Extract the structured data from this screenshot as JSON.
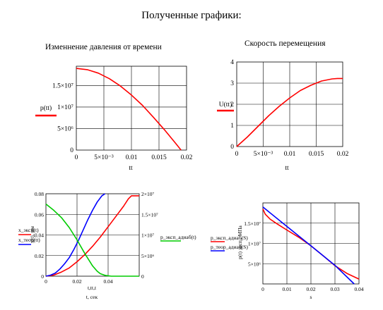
{
  "page_title": "Полученные графики:",
  "chart_data": [
    {
      "id": "pressure",
      "type": "line",
      "title": "Изменнение давления от времени",
      "xlabel": "tt",
      "ylabel": "p(tt)",
      "xlim": [
        0,
        0.02
      ],
      "ylim": [
        0,
        19500000.0
      ],
      "x_ticks": [
        "0",
        "5×10⁻³",
        "0.01",
        "0.015",
        "0.02"
      ],
      "x_tick_values": [
        0,
        0.005,
        0.01,
        0.015,
        0.02
      ],
      "y_ticks": [
        "0",
        "5×10⁶",
        "1×10⁷",
        "1.5×10⁷"
      ],
      "y_tick_values": [
        0,
        5000000.0,
        10000000.0,
        15000000.0
      ],
      "grid": true,
      "legend": "left",
      "series": [
        {
          "name": "p(tt)",
          "color": "#ff0000",
          "x": [
            0,
            0.002,
            0.004,
            0.006,
            0.008,
            0.01,
            0.012,
            0.014,
            0.016,
            0.018,
            0.019
          ],
          "y": [
            19000000.0,
            18700000.0,
            17900000.0,
            16600000.0,
            14900000.0,
            12800000.0,
            10400000.0,
            7600000.0,
            4700000.0,
            1600000.0,
            0
          ]
        }
      ]
    },
    {
      "id": "velocity",
      "type": "line",
      "title": "Скорость перемещения",
      "xlabel": "tt",
      "ylabel": "U(tt)",
      "xlim": [
        0,
        0.02
      ],
      "ylim": [
        0,
        4
      ],
      "x_ticks": [
        "0",
        "5×10⁻³",
        "0.01",
        "0.015",
        "0.02"
      ],
      "x_tick_values": [
        0,
        0.005,
        0.01,
        0.015,
        0.02
      ],
      "y_ticks": [
        "0",
        "1",
        "2",
        "3",
        "4"
      ],
      "y_tick_values": [
        0,
        1,
        2,
        3,
        4
      ],
      "grid": true,
      "legend": "left",
      "series": [
        {
          "name": "U(tt)",
          "color": "#ff0000",
          "x": [
            0,
            0.002,
            0.004,
            0.006,
            0.008,
            0.01,
            0.012,
            0.014,
            0.016,
            0.018,
            0.019,
            0.02
          ],
          "y": [
            0,
            0.45,
            0.95,
            1.45,
            1.9,
            2.3,
            2.65,
            2.9,
            3.1,
            3.2,
            3.22,
            3.22
          ]
        }
      ]
    },
    {
      "id": "displacement",
      "type": "line",
      "xlabel": "t, сек",
      "xlabel2": "t,tt,t",
      "ylabel": "x(t), мм",
      "xlim": [
        0,
        0.06
      ],
      "ylim": [
        0,
        0.08
      ],
      "ylim_right": [
        0,
        20000000.0
      ],
      "x_ticks": [
        "0",
        "0.02",
        "0.04"
      ],
      "x_tick_values": [
        0,
        0.02,
        0.04
      ],
      "y_ticks": [
        "0",
        "0.02",
        "0.04",
        "0.06",
        "0.08"
      ],
      "y_tick_values": [
        0,
        0.02,
        0.04,
        0.06,
        0.08
      ],
      "y2_ticks": [
        "0",
        "5×10⁶",
        "1×10⁷",
        "1.5×10⁷",
        "2×10⁷"
      ],
      "y2_tick_values": [
        0,
        5000000.0,
        10000000.0,
        15000000.0,
        20000000.0
      ],
      "grid": true,
      "series": [
        {
          "name": "x_эксп(t)",
          "color": "#ff0000",
          "axis": "left",
          "x": [
            0,
            0.005,
            0.01,
            0.015,
            0.02,
            0.025,
            0.03,
            0.035,
            0.04,
            0.045,
            0.05,
            0.053,
            0.055,
            0.06
          ],
          "y": [
            0,
            0.001,
            0.004,
            0.008,
            0.014,
            0.021,
            0.029,
            0.038,
            0.048,
            0.058,
            0.068,
            0.075,
            0.078,
            0.078
          ]
        },
        {
          "name": "x_теор(tt)",
          "color": "#0000ff",
          "axis": "left",
          "x": [
            0,
            0.003,
            0.006,
            0.009,
            0.012,
            0.015,
            0.018,
            0.021,
            0.024,
            0.027,
            0.03,
            0.033,
            0.036,
            0.038
          ],
          "y": [
            0,
            0.001,
            0.003,
            0.007,
            0.012,
            0.018,
            0.026,
            0.035,
            0.045,
            0.055,
            0.064,
            0.072,
            0.078,
            0.08
          ]
        },
        {
          "name": "p_эксп_адиаб(t)",
          "color": "#00cc00",
          "axis": "right",
          "x": [
            0,
            0.005,
            0.01,
            0.015,
            0.02,
            0.025,
            0.03,
            0.033,
            0.035,
            0.038,
            0.042,
            0.06
          ],
          "y": [
            17500000.0,
            16000000.0,
            14200000.0,
            11800000.0,
            8800000.0,
            5500000.0,
            2500000.0,
            1200000.0,
            600000.0,
            200000.0,
            0,
            0
          ]
        }
      ]
    },
    {
      "id": "pressure-vs-distance",
      "type": "line",
      "xlabel": "s",
      "ylabel": "p(t) эксп., МПа",
      "xlim": [
        0,
        0.04
      ],
      "ylim": [
        0,
        20000000.0
      ],
      "x_ticks": [
        "0",
        "0.01",
        "0.02",
        "0.03",
        "0.04"
      ],
      "x_tick_values": [
        0,
        0.01,
        0.02,
        0.03,
        0.04
      ],
      "y_ticks": [
        "5×10⁶",
        "1×10⁷",
        "1.5×10⁷"
      ],
      "y_tick_values": [
        5000000.0,
        10000000.0,
        15000000.0
      ],
      "grid": true,
      "series": [
        {
          "name": "p_эксп_адиаб(S)",
          "color": "#ff0000",
          "x": [
            0,
            0.001,
            0.003,
            0.006,
            0.01,
            0.015,
            0.02,
            0.025,
            0.03,
            0.035,
            0.04
          ],
          "y": [
            18500000.0,
            17200000.0,
            16000000.0,
            14800000.0,
            13300000.0,
            11500000.0,
            9400000.0,
            7000000.0,
            4500000.0,
            2600000.0,
            1200000.0
          ]
        },
        {
          "name": "p_теор_адиаб(S)",
          "color": "#0000ff",
          "x": [
            0,
            0.01,
            0.02,
            0.03,
            0.038
          ],
          "y": [
            19000000.0,
            14200000.0,
            9400000.0,
            4600000.0,
            0
          ]
        }
      ]
    }
  ]
}
